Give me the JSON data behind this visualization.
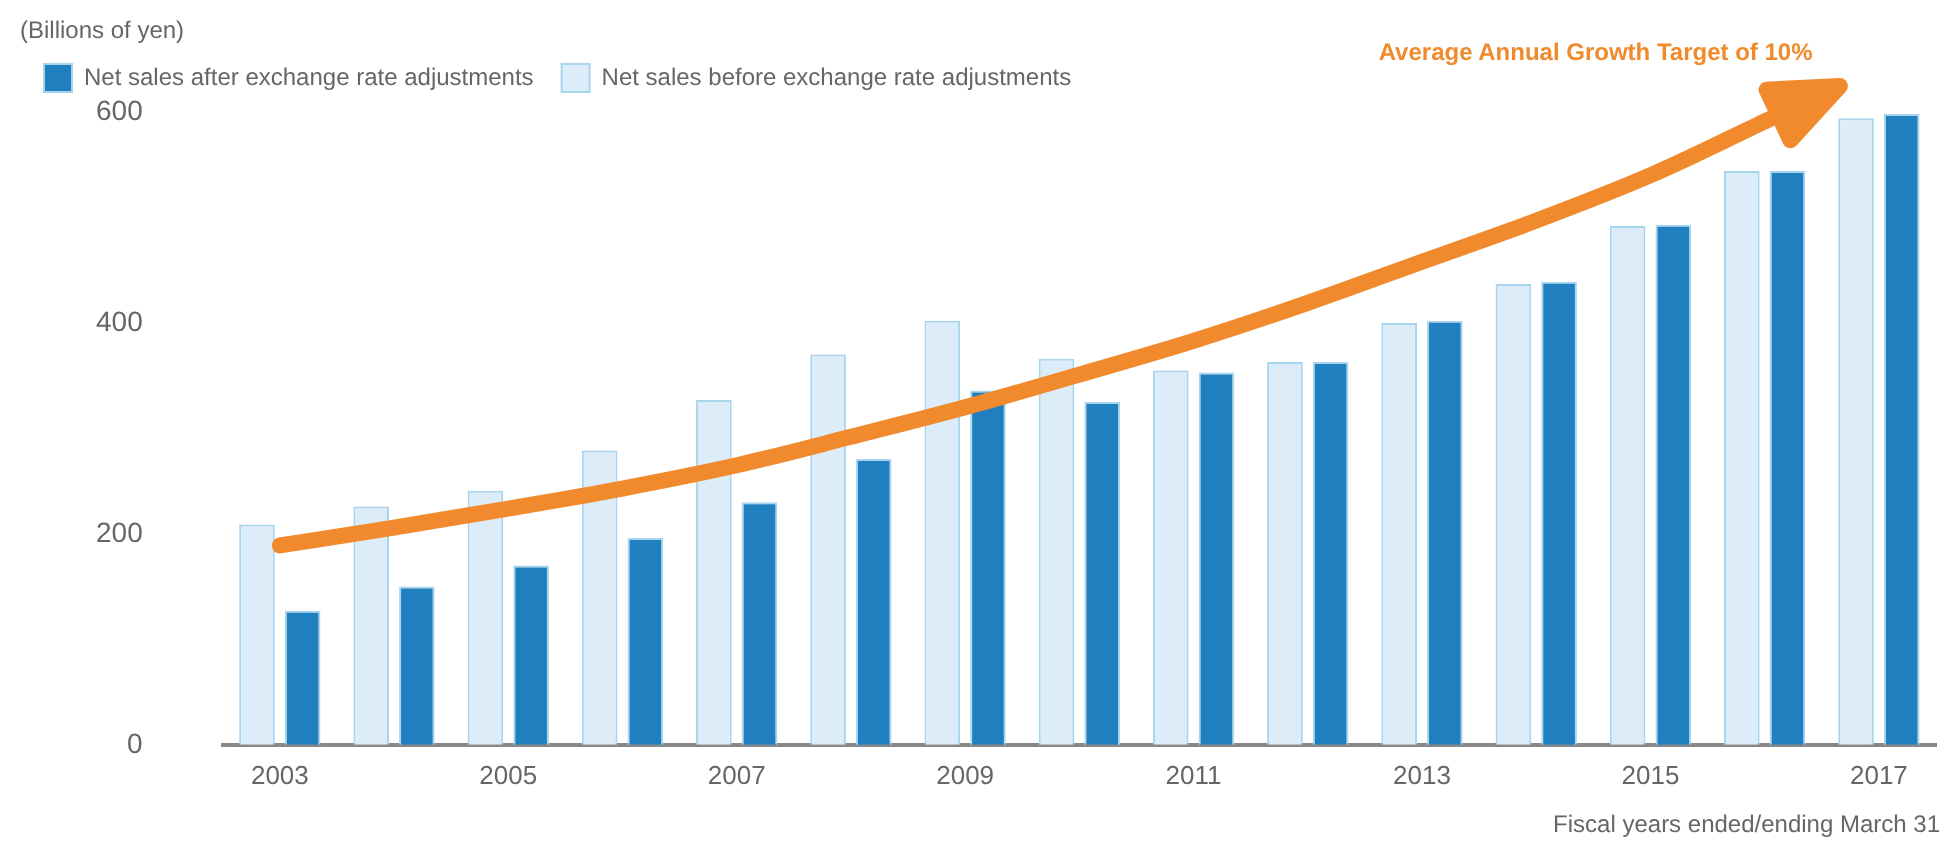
{
  "chart_data": {
    "type": "bar",
    "ylabel": "(Billions of yen)",
    "xlabel": "Fiscal years ended/ending March 31",
    "categories": [
      "2003",
      null,
      "2005",
      null,
      "2007",
      null,
      "2009",
      null,
      "2011",
      null,
      "2013",
      null,
      "2015",
      null,
      "2017"
    ],
    "series": [
      {
        "name": "Net sales before exchange rate adjustments",
        "color": "#dcedf9",
        "values": [
          209,
          226,
          241,
          279,
          327,
          370,
          402,
          366,
          355,
          363,
          400,
          437,
          492,
          544,
          594
        ]
      },
      {
        "name": "Net sales after exchange rate adjustments",
        "color": "#1f7fbf",
        "values": [
          127,
          150,
          170,
          196,
          230,
          271,
          336,
          325,
          353,
          363,
          402,
          439,
          493,
          544,
          598
        ]
      },
      {
        "name": "Average Annual Growth Target of 10%",
        "type": "line",
        "color": "#f08a2c",
        "marker": "none",
        "values": [
          189,
          206,
          224,
          243,
          265,
          292,
          320,
          351,
          383,
          419,
          458,
          497,
          540,
          591,
          null
        ]
      }
    ],
    "ylim": [
      0,
      600
    ],
    "yticks": [
      0,
      200,
      400,
      600
    ],
    "grid": false,
    "legend": "top left"
  }
}
